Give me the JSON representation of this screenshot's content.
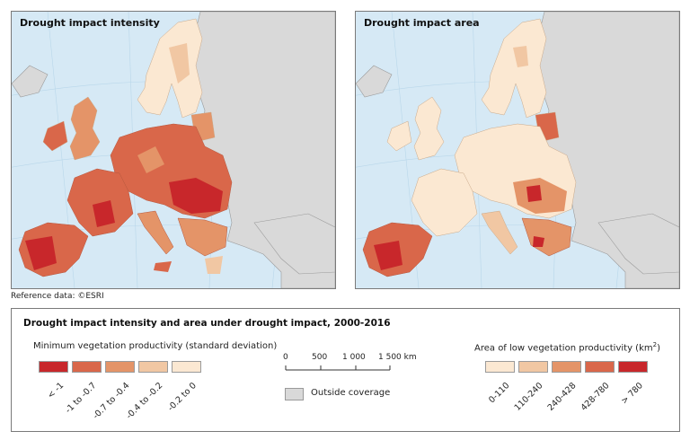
{
  "maps": {
    "left_title": "Drought impact intensity",
    "right_title": "Drought impact area",
    "reference": "Reference data: ©ESRI"
  },
  "legend": {
    "title": "Drought impact intensity and area under drought impact, 2000-2016",
    "intensity": {
      "title": "Minimum vegetation productivity (standard deviation)",
      "classes": [
        {
          "label": "< -1",
          "color": "#c8272b"
        },
        {
          "label": "-1 to -0.7",
          "color": "#d9674a"
        },
        {
          "label": "-0.7 to -0.4",
          "color": "#e49468"
        },
        {
          "label": "-0.4 to -0.2",
          "color": "#f1c7a3"
        },
        {
          "label": "-0.2 to 0",
          "color": "#fbe8d2"
        }
      ]
    },
    "area": {
      "title": "Area of low vegetation productivity (km",
      "title_sup": "2",
      "title_end": ")",
      "classes": [
        {
          "label": "0-110",
          "color": "#fbe8d2"
        },
        {
          "label": "110-240",
          "color": "#f1c7a3"
        },
        {
          "label": "240-428",
          "color": "#e49468"
        },
        {
          "label": "428-780",
          "color": "#d9674a"
        },
        {
          "label": "> 780",
          "color": "#c8272b"
        }
      ]
    },
    "scale": {
      "ticks": [
        "0",
        "500",
        "1 000",
        "1 500 km"
      ]
    },
    "outside_coverage": {
      "label": "Outside coverage",
      "color": "#d9d9d9"
    }
  },
  "colors": {
    "sea": "#d6e9f5",
    "outside_land": "#d9d9d9",
    "border": "#8a8a8a"
  }
}
